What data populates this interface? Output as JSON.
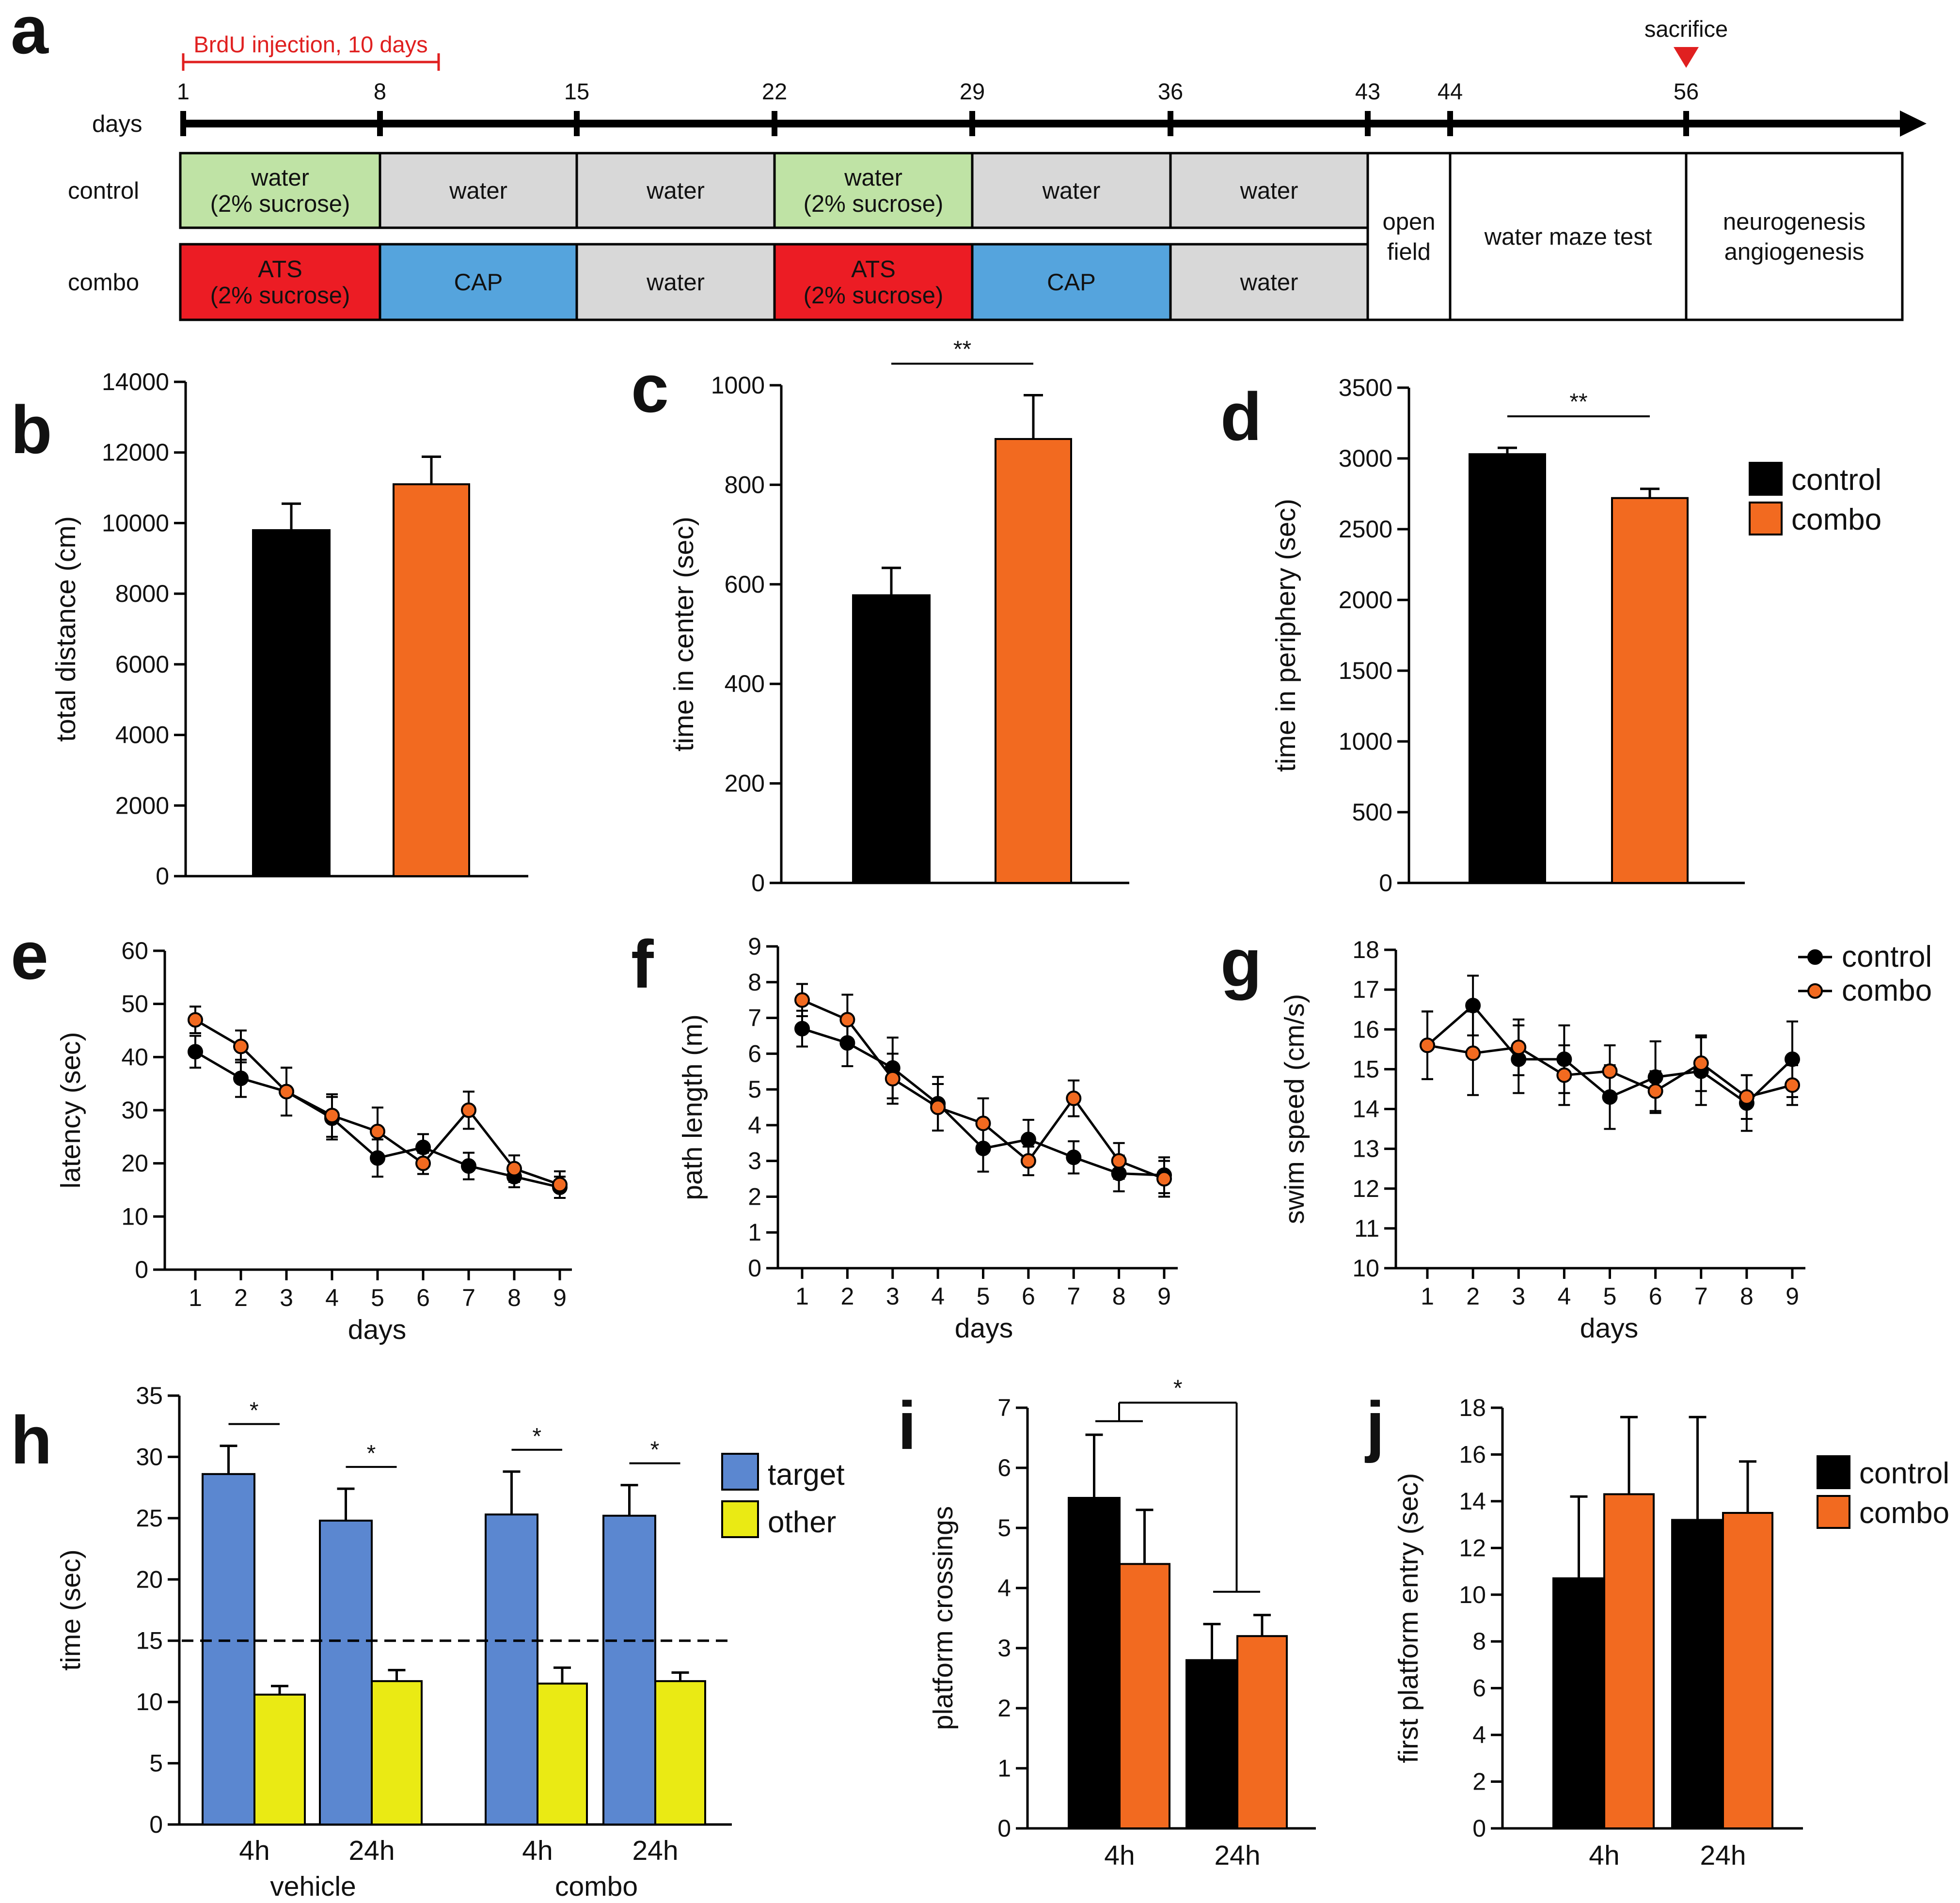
{
  "colors": {
    "control": "#000000",
    "combo": "#f26a20",
    "target": "#5b87d0",
    "other": "#eaea14",
    "sucrose_water": "#bfe3a5",
    "water": "#d8d8d8",
    "ats": "#ec1c24",
    "cap": "#55a4dd",
    "blank": "#ffffff",
    "brdu": "#e02020",
    "sacrifice": "#e02020"
  },
  "panel_a": {
    "letter": "a",
    "brdu_label": "BrdU injection, 10 days",
    "sacrifice_label": "sacrifice",
    "axis_label": "days",
    "day_ticks": [
      "1",
      "8",
      "15",
      "22",
      "29",
      "36",
      "43",
      "44",
      "56"
    ],
    "rows": [
      {
        "name": "control",
        "segments": [
          {
            "lines": [
              "water",
              "(2% sucrose)"
            ],
            "color": "sucrose_water"
          },
          {
            "lines": [
              "water"
            ],
            "color": "water"
          },
          {
            "lines": [
              "water"
            ],
            "color": "water"
          },
          {
            "lines": [
              "water",
              "(2% sucrose)"
            ],
            "color": "sucrose_water"
          },
          {
            "lines": [
              "water"
            ],
            "color": "water"
          },
          {
            "lines": [
              "water"
            ],
            "color": "water"
          }
        ]
      },
      {
        "name": "combo",
        "segments": [
          {
            "lines": [
              "ATS",
              "(2% sucrose)"
            ],
            "color": "ats"
          },
          {
            "lines": [
              "CAP"
            ],
            "color": "cap"
          },
          {
            "lines": [
              "water"
            ],
            "color": "water"
          },
          {
            "lines": [
              "ATS",
              "(2% sucrose)"
            ],
            "color": "ats"
          },
          {
            "lines": [
              "CAP"
            ],
            "color": "cap"
          },
          {
            "lines": [
              "water"
            ],
            "color": "water"
          }
        ]
      }
    ],
    "shared_blocks": [
      {
        "lines": [
          "open",
          "field"
        ]
      },
      {
        "lines": [
          "water maze test"
        ]
      },
      {
        "lines": [
          "neurogenesis",
          "angiogenesis"
        ]
      }
    ]
  },
  "chart_data": [
    {
      "id": "b",
      "letter": "b",
      "type": "bar",
      "ylabel": "total distance (cm)",
      "ylim": [
        0,
        14000
      ],
      "yticks": [
        0,
        2000,
        4000,
        6000,
        8000,
        10000,
        12000,
        14000
      ],
      "categories": [
        "control",
        "combo"
      ],
      "values": [
        9800,
        11100
      ],
      "errors": [
        750,
        780
      ],
      "bar_colors": [
        "control",
        "combo"
      ]
    },
    {
      "id": "c",
      "letter": "c",
      "type": "bar",
      "ylabel": "time in center (sec)",
      "ylim": [
        0,
        1000
      ],
      "yticks": [
        0,
        200,
        400,
        600,
        800,
        1000
      ],
      "categories": [
        "control",
        "combo"
      ],
      "values": [
        578,
        892
      ],
      "errors": [
        55,
        88
      ],
      "bar_colors": [
        "control",
        "combo"
      ],
      "significance": [
        {
          "label": "**",
          "from": 0,
          "to": 1
        }
      ]
    },
    {
      "id": "d",
      "letter": "d",
      "type": "bar",
      "ylabel": "time in periphery (sec)",
      "ylim": [
        0,
        3500
      ],
      "yticks": [
        0,
        500,
        1000,
        1500,
        2000,
        2500,
        3000,
        3500
      ],
      "categories": [
        "control",
        "combo"
      ],
      "values": [
        3030,
        2720
      ],
      "errors": [
        45,
        65
      ],
      "bar_colors": [
        "control",
        "combo"
      ],
      "significance": [
        {
          "label": "**",
          "from": 0,
          "to": 1
        }
      ],
      "legend": [
        "control",
        "combo"
      ]
    },
    {
      "id": "e",
      "letter": "e",
      "type": "line",
      "xlabel": "days",
      "ylabel": "latency (sec)",
      "ylim": [
        0,
        60
      ],
      "yticks": [
        0,
        10,
        20,
        30,
        40,
        50,
        60
      ],
      "x": [
        1,
        2,
        3,
        4,
        5,
        6,
        7,
        8,
        9
      ],
      "series": [
        {
          "name": "control",
          "color": "control",
          "values": [
            41,
            36,
            33.5,
            28.5,
            21,
            23,
            19.5,
            17.5,
            15.5
          ],
          "errors": [
            3,
            3.5,
            4.5,
            4,
            3.5,
            2.5,
            2.5,
            2,
            2
          ]
        },
        {
          "name": "combo",
          "color": "combo",
          "values": [
            47,
            42,
            33.5,
            29,
            26,
            20,
            30,
            19,
            16
          ],
          "errors": [
            2.5,
            3,
            4.5,
            4,
            4.5,
            2,
            3.5,
            2.5,
            2.5
          ]
        }
      ]
    },
    {
      "id": "f",
      "letter": "f",
      "type": "line",
      "xlabel": "days",
      "ylabel": "path length (m)",
      "ylim": [
        0,
        9
      ],
      "yticks": [
        0,
        1,
        2,
        3,
        4,
        5,
        6,
        7,
        8,
        9
      ],
      "x": [
        1,
        2,
        3,
        4,
        5,
        6,
        7,
        8,
        9
      ],
      "series": [
        {
          "name": "control",
          "color": "control",
          "values": [
            6.7,
            6.3,
            5.6,
            4.6,
            3.35,
            3.6,
            3.1,
            2.65,
            2.6
          ],
          "errors": [
            0.5,
            0.65,
            0.85,
            0.75,
            0.65,
            0.55,
            0.45,
            0.5,
            0.5
          ]
        },
        {
          "name": "combo",
          "color": "combo",
          "values": [
            7.5,
            6.95,
            5.3,
            4.5,
            4.05,
            3.0,
            4.75,
            3.0,
            2.5
          ],
          "errors": [
            0.45,
            0.7,
            0.7,
            0.65,
            0.7,
            0.4,
            0.5,
            0.5,
            0.5
          ]
        }
      ]
    },
    {
      "id": "g",
      "letter": "g",
      "type": "line",
      "xlabel": "days",
      "ylabel": "swim speed (cm/s)",
      "ylim": [
        10,
        18
      ],
      "yticks": [
        10,
        11,
        12,
        13,
        14,
        15,
        16,
        17,
        18
      ],
      "x": [
        1,
        2,
        3,
        4,
        5,
        6,
        7,
        8,
        9
      ],
      "series": [
        {
          "name": "control",
          "color": "control",
          "values": [
            15.6,
            16.6,
            15.25,
            15.25,
            14.3,
            14.8,
            14.95,
            14.15,
            15.25
          ],
          "errors": [
            0.85,
            0.75,
            0.85,
            0.85,
            0.8,
            0.9,
            0.85,
            0.7,
            0.95
          ]
        },
        {
          "name": "combo",
          "color": "combo",
          "values": [
            15.6,
            15.4,
            15.55,
            14.85,
            14.95,
            14.45,
            15.15,
            14.3,
            14.6
          ],
          "errors": [
            0.85,
            1.05,
            0.7,
            0.75,
            0.65,
            0.5,
            0.7,
            0.55,
            0.5
          ]
        }
      ],
      "legend": [
        "control",
        "combo"
      ]
    },
    {
      "id": "h",
      "letter": "h",
      "type": "bar",
      "ylabel": "time (sec)",
      "ylim": [
        0,
        35
      ],
      "yticks": [
        0,
        5,
        10,
        15,
        20,
        25,
        30,
        35
      ],
      "reference_line": 15,
      "groups": [
        {
          "label": "vehicle",
          "subgroups": [
            {
              "label": "4h",
              "values": [
                28.6,
                10.6
              ],
              "errors": [
                2.3,
                0.7
              ]
            },
            {
              "label": "24h",
              "values": [
                24.8,
                11.7
              ],
              "errors": [
                2.6,
                0.9
              ]
            }
          ]
        },
        {
          "label": "combo",
          "subgroups": [
            {
              "label": "4h",
              "values": [
                25.3,
                11.5
              ],
              "errors": [
                3.5,
                1.3
              ]
            },
            {
              "label": "24h",
              "values": [
                25.2,
                11.7
              ],
              "errors": [
                2.5,
                0.7
              ]
            }
          ]
        }
      ],
      "series_names": [
        "target",
        "other"
      ],
      "series_colors": [
        "target",
        "other"
      ],
      "significance_label": "*",
      "legend": [
        "target",
        "other"
      ]
    },
    {
      "id": "i",
      "letter": "i",
      "type": "bar",
      "ylabel": "platform crossings",
      "ylim": [
        0,
        7
      ],
      "yticks": [
        0,
        1,
        2,
        3,
        4,
        5,
        6,
        7
      ],
      "categories": [
        "4h",
        "24h"
      ],
      "series": [
        {
          "name": "control",
          "color": "control",
          "values": [
            5.5,
            2.8
          ],
          "errors": [
            1.05,
            0.6
          ]
        },
        {
          "name": "combo",
          "color": "combo",
          "values": [
            4.4,
            3.2
          ],
          "errors": [
            0.9,
            0.35
          ]
        }
      ],
      "significance": [
        {
          "label": "*",
          "from": 0,
          "to": 1
        }
      ]
    },
    {
      "id": "j",
      "letter": "j",
      "type": "bar",
      "ylabel": "first platform entry (sec)",
      "ylim": [
        0,
        18
      ],
      "yticks": [
        0,
        2,
        4,
        6,
        8,
        10,
        12,
        14,
        16,
        18
      ],
      "categories": [
        "4h",
        "24h"
      ],
      "series": [
        {
          "name": "control",
          "color": "control",
          "values": [
            10.7,
            13.2
          ],
          "errors": [
            3.5,
            4.4
          ]
        },
        {
          "name": "combo",
          "color": "combo",
          "values": [
            14.3,
            13.5
          ],
          "errors": [
            3.3,
            2.2
          ]
        }
      ],
      "legend": [
        "control",
        "combo"
      ]
    }
  ]
}
